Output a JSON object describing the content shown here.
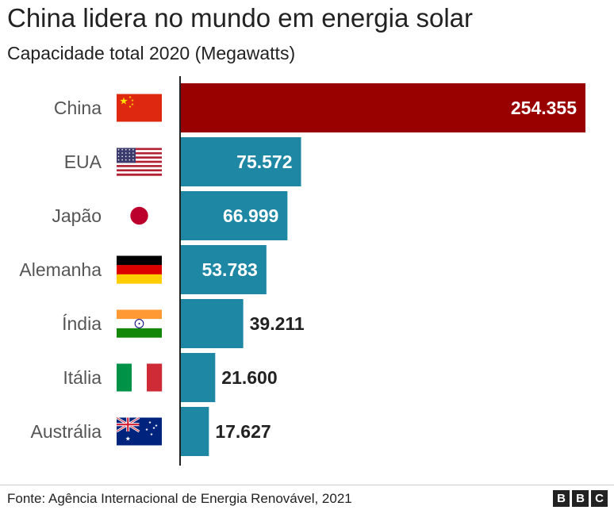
{
  "title": "China lidera no mundo em energia solar",
  "subtitle": "Capacidade total 2020 (Megawatts)",
  "source": "Fonte: Agência Internacional de Energia Renovável, 2021",
  "logo": [
    "B",
    "B",
    "C"
  ],
  "colors": {
    "highlight": "#990000",
    "bar": "#1d87a4",
    "label_inside": "#ffffff",
    "label_outside": "#222222",
    "category": "#555555",
    "axis": "#222222"
  },
  "chart_data": {
    "type": "bar",
    "orientation": "horizontal",
    "title": "China lidera no mundo em energia solar",
    "subtitle": "Capacidade total 2020 (Megawatts)",
    "categories": [
      "China",
      "EUA",
      "Japão",
      "Alemanha",
      "Índia",
      "Itália",
      "Austrália"
    ],
    "values": [
      254355,
      75572,
      66999,
      53783,
      39211,
      21600,
      17627
    ],
    "value_labels": [
      "254.355",
      "75.572",
      "66.999",
      "53.783",
      "39.211",
      "21.600",
      "17.627"
    ],
    "flags": [
      "china-flag-icon",
      "usa-flag-icon",
      "japan-flag-icon",
      "germany-flag-icon",
      "india-flag-icon",
      "italy-flag-icon",
      "australia-flag-icon"
    ],
    "highlight_index": 0,
    "xlim": [
      0,
      254355
    ],
    "grid": false,
    "legend": "none"
  }
}
